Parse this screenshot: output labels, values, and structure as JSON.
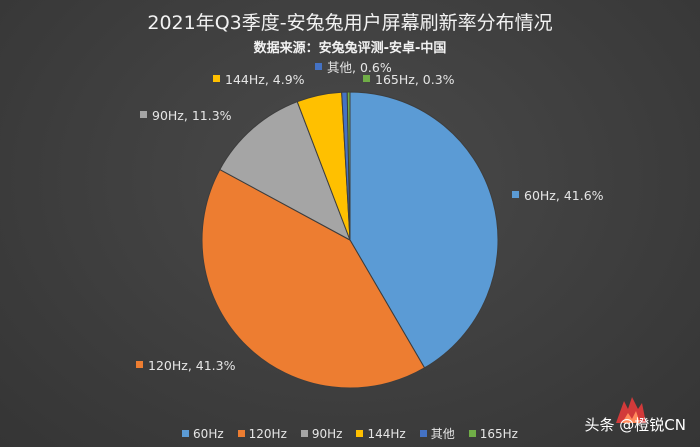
{
  "chart_data": {
    "type": "pie",
    "title": "2021年Q3季度-安兔兔用户屏幕刷新率分布情况",
    "subtitle": "数据来源：安兔兔评测-安卓-中国",
    "slices": [
      {
        "name": "60Hz",
        "value": 41.6,
        "label": "60Hz, 41.6%",
        "color": "#5b9bd5"
      },
      {
        "name": "120Hz",
        "value": 41.3,
        "label": "120Hz, 41.3%",
        "color": "#ed7d31"
      },
      {
        "name": "90Hz",
        "value": 11.3,
        "label": "90Hz, 11.3%",
        "color": "#a5a5a5"
      },
      {
        "name": "144Hz",
        "value": 4.9,
        "label": "144Hz, 4.9%",
        "color": "#ffc000"
      },
      {
        "name": "其他",
        "value": 0.6,
        "label": "其他, 0.6%",
        "color": "#4472c4"
      },
      {
        "name": "165Hz",
        "value": 0.3,
        "label": "165Hz, 0.3%",
        "color": "#70ad47"
      }
    ],
    "legend_position": "bottom"
  },
  "watermark": {
    "text": "头条 @橙锐CN"
  }
}
